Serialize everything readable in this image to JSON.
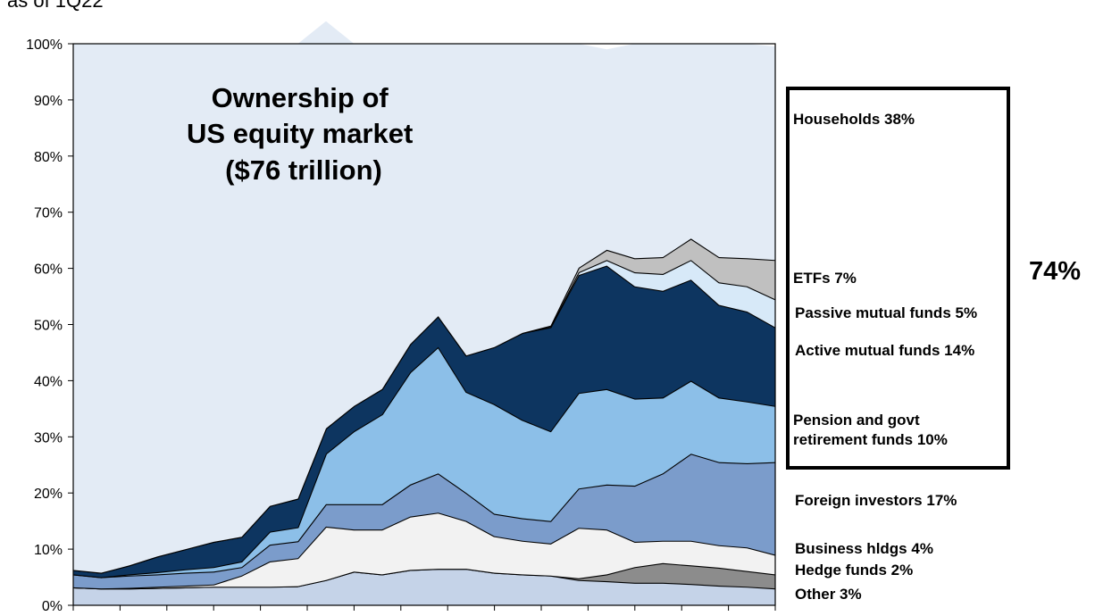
{
  "subtitle": "as of 1Q22",
  "chart_data": {
    "type": "area",
    "stacked": true,
    "title": "Ownership of\nUS equity market\n($76 trillion)",
    "title_lines": [
      "Ownership of",
      "US equity market",
      "($76 trillion)"
    ],
    "xlabel": "",
    "ylabel": "",
    "ylim": [
      0,
      100
    ],
    "yticks": [
      "0%",
      "10%",
      "20%",
      "30%",
      "40%",
      "50%",
      "60%",
      "70%",
      "80%",
      "90%",
      "100%"
    ],
    "x_tick_count": 16,
    "grid": false,
    "legend_placement": "right",
    "x": [
      0,
      4,
      8,
      12,
      16,
      20,
      24,
      28,
      32,
      36,
      40,
      44,
      48,
      52,
      56,
      60,
      64,
      68,
      72,
      76,
      80,
      84,
      88,
      92,
      96,
      100
    ],
    "series": [
      {
        "name": "Other 3%",
        "color": "#c5d3e8",
        "values": [
          3.2,
          3.0,
          3.0,
          3.1,
          3.2,
          3.3,
          3.3,
          3.3,
          3.4,
          4.5,
          6.0,
          5.5,
          6.3,
          6.5,
          6.5,
          5.8,
          5.5,
          5.3,
          4.5,
          4.3,
          4.0,
          4.0,
          3.8,
          3.5,
          3.3,
          3.0
        ]
      },
      {
        "name": "Hedge funds 2%",
        "color": "#8c8c8c",
        "values": [
          0,
          0,
          0,
          0,
          0,
          0,
          0,
          0,
          0,
          0,
          0,
          0,
          0,
          0,
          0,
          0,
          0,
          0,
          0.3,
          1.2,
          2.8,
          3.5,
          3.3,
          3.2,
          2.8,
          2.5
        ]
      },
      {
        "name": "Business hldgs 4%",
        "color": "#f2f2f2",
        "values": [
          0,
          0,
          0.1,
          0.2,
          0.3,
          0.4,
          2.0,
          4.5,
          5.0,
          9.5,
          7.5,
          8.0,
          9.5,
          10.0,
          8.5,
          6.5,
          6.0,
          5.7,
          9.0,
          8.0,
          4.5,
          4.0,
          4.4,
          4.0,
          4.2,
          3.5
        ]
      },
      {
        "name": "Foreign investors 17%",
        "color": "#7b9ccb",
        "values": [
          2.3,
          2.0,
          2.2,
          2.2,
          2.3,
          2.3,
          1.5,
          3.0,
          3.0,
          4.0,
          4.5,
          4.5,
          5.7,
          7.0,
          5.0,
          4.0,
          4.0,
          4.0,
          7.0,
          8.0,
          10.0,
          12.0,
          15.5,
          14.8,
          15.0,
          16.5
        ]
      },
      {
        "name": "Pension and govt retirement funds 10%",
        "color": "#8cbfe8",
        "values": [
          0,
          0,
          0.2,
          0.4,
          0.6,
          0.8,
          1.0,
          2.3,
          2.5,
          9.0,
          13.0,
          16.0,
          20.0,
          22.5,
          18.0,
          19.5,
          17.5,
          16.0,
          17.0,
          17.0,
          15.5,
          13.5,
          13.0,
          11.5,
          11.0,
          10.0
        ]
      },
      {
        "name": "Active mutual funds 14%",
        "color": "#0d3560",
        "values": [
          0.8,
          0.8,
          1.6,
          2.8,
          3.6,
          4.5,
          4.4,
          4.6,
          5.1,
          4.5,
          4.5,
          4.5,
          5.0,
          5.5,
          6.5,
          10.2,
          15.5,
          18.5,
          21.0,
          22.0,
          20.0,
          19.0,
          18.0,
          16.5,
          16.0,
          14.0
        ]
      },
      {
        "name": "Passive mutual funds 5%",
        "color": "#d7e9f8",
        "values": [
          0,
          0,
          0,
          0,
          0,
          0,
          0,
          0,
          0,
          0,
          0,
          0,
          0,
          0,
          0,
          0,
          0,
          0.1,
          0.5,
          1.0,
          2.5,
          3.0,
          3.5,
          4.0,
          4.5,
          5.0
        ]
      },
      {
        "name": "ETFs 7%",
        "color": "#c0c0c0",
        "values": [
          0,
          0,
          0,
          0,
          0,
          0,
          0,
          0,
          0,
          0,
          0,
          0,
          0,
          0,
          0,
          0,
          0,
          0.2,
          0.8,
          1.8,
          2.5,
          3.0,
          3.8,
          4.5,
          5.0,
          7.0
        ]
      },
      {
        "name": "Households 38%",
        "color": "#e3ebf5",
        "values": [
          93.7,
          94.2,
          92.9,
          91.3,
          90.0,
          88.7,
          87.8,
          82.3,
          81.0,
          72.5,
          64.5,
          61.5,
          53.5,
          48.5,
          55.5,
          54.0,
          51.5,
          50.2,
          39.9,
          35.7,
          38.2,
          38.0,
          34.7,
          38.0,
          38.2,
          38.0
        ]
      }
    ],
    "bracket": {
      "label": "74%"
    }
  }
}
